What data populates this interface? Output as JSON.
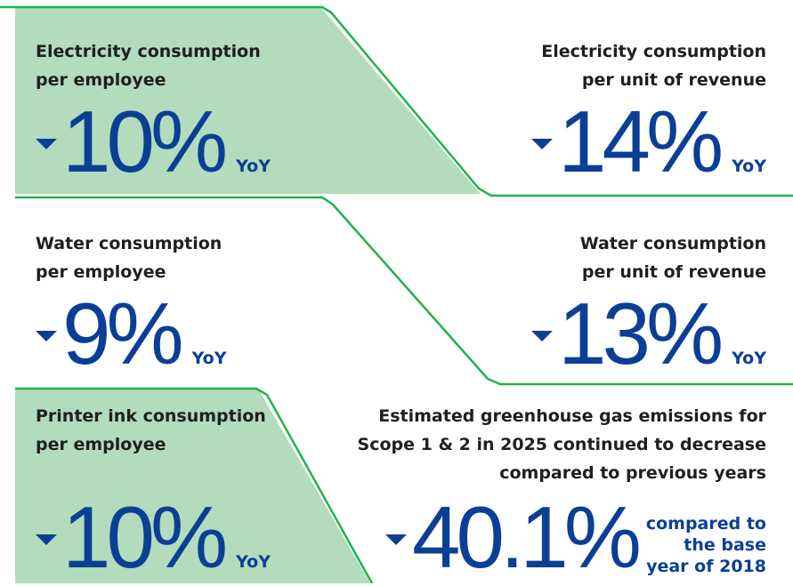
{
  "items": [
    {
      "label": [
        "Electricity consumption",
        "per employee"
      ],
      "value": "10%",
      "unit": "YoY"
    },
    {
      "label": [
        "Electricity consumption",
        "per unit of revenue"
      ],
      "value": "14%",
      "unit": "YoY"
    },
    {
      "label": [
        "Water consumption",
        "per employee"
      ],
      "value": "9%",
      "unit": "YoY"
    },
    {
      "label": [
        "Water consumption",
        "per unit of revenue"
      ],
      "value": "13%",
      "unit": "YoY"
    },
    {
      "label": [
        "Printer ink consumption",
        "per employee"
      ],
      "value": "10%",
      "unit": "YoY"
    },
    {
      "label": [
        "Estimated greenhouse gas emissions for",
        "Scope 1 & 2 in 2025 continued to decrease",
        "compared to previous years"
      ],
      "value": "40.1%",
      "note": [
        "compared to",
        "the base",
        "year of 2018"
      ]
    }
  ]
}
